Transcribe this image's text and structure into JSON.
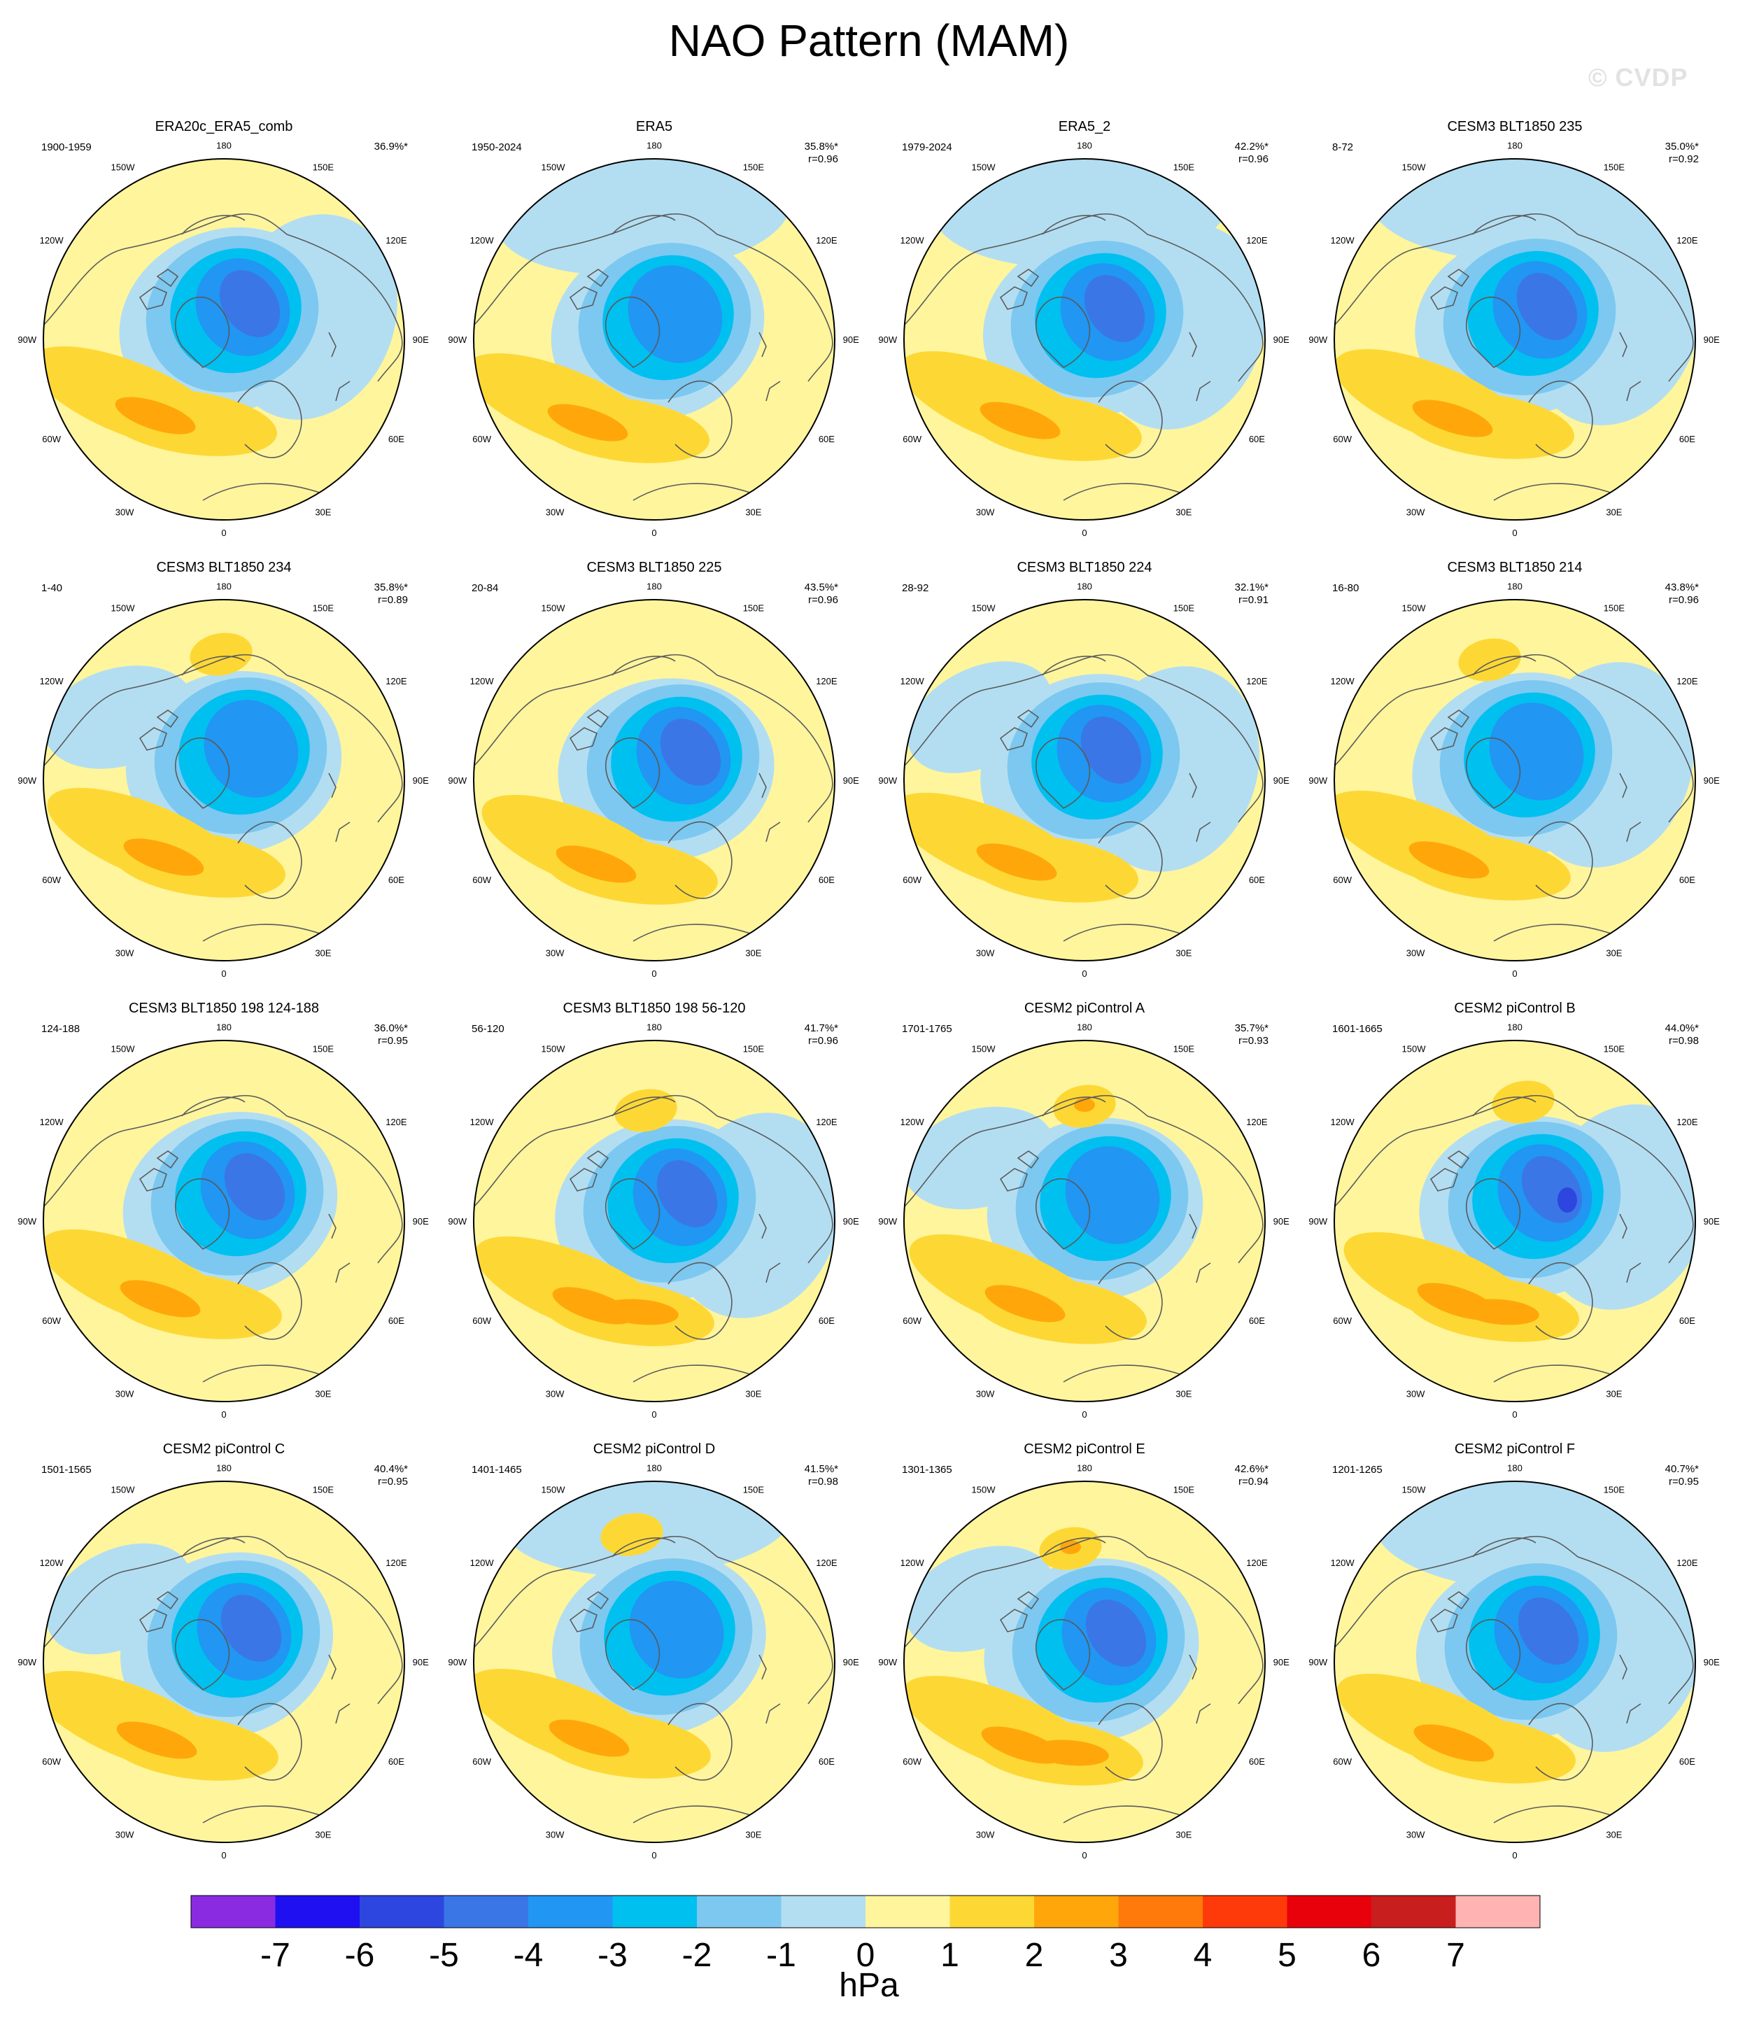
{
  "title": "NAO Pattern (MAM)",
  "watermark": "© CVDP",
  "colors": {
    "ocean_bg": "#FFF59D",
    "coast": "#5a5a5a",
    "border": "#000000"
  },
  "longitude_labels": [
    "180",
    "150E",
    "120E",
    "90E",
    "60E",
    "30E",
    "0",
    "30W",
    "60W",
    "90W",
    "120W",
    "150W"
  ],
  "panels": [
    {
      "title": "ERA20c_ERA5_comb",
      "period": "1900-1959",
      "pct": "36.9%*",
      "r": ""
    },
    {
      "title": "ERA5",
      "period": "1950-2024",
      "pct": "35.8%*",
      "r": "r=0.96"
    },
    {
      "title": "ERA5_2",
      "period": "1979-2024",
      "pct": "42.2%*",
      "r": "r=0.96"
    },
    {
      "title": "CESM3 BLT1850 235",
      "period": "8-72",
      "pct": "35.0%*",
      "r": "r=0.92"
    },
    {
      "title": "CESM3 BLT1850 234",
      "period": "1-40",
      "pct": "35.8%*",
      "r": "r=0.89"
    },
    {
      "title": "CESM3 BLT1850 225",
      "period": "20-84",
      "pct": "43.5%*",
      "r": "r=0.96"
    },
    {
      "title": "CESM3 BLT1850 224",
      "period": "28-92",
      "pct": "32.1%*",
      "r": "r=0.91"
    },
    {
      "title": "CESM3 BLT1850 214",
      "period": "16-80",
      "pct": "43.8%*",
      "r": "r=0.96"
    },
    {
      "title": "CESM3 BLT1850 198 124-188",
      "period": "124-188",
      "pct": "36.0%*",
      "r": "r=0.95"
    },
    {
      "title": "CESM3 BLT1850 198 56-120",
      "period": "56-120",
      "pct": "41.7%*",
      "r": "r=0.96"
    },
    {
      "title": "CESM2 piControl A",
      "period": "1701-1765",
      "pct": "35.7%*",
      "r": "r=0.93"
    },
    {
      "title": "CESM2 piControl B",
      "period": "1601-1665",
      "pct": "44.0%*",
      "r": "r=0.98"
    },
    {
      "title": "CESM2 piControl C",
      "period": "1501-1565",
      "pct": "40.4%*",
      "r": "r=0.95"
    },
    {
      "title": "CESM2 piControl D",
      "period": "1401-1465",
      "pct": "41.5%*",
      "r": "r=0.98"
    },
    {
      "title": "CESM2 piControl E",
      "period": "1301-1365",
      "pct": "42.6%*",
      "r": "r=0.94"
    },
    {
      "title": "CESM2 piControl F",
      "period": "1201-1265",
      "pct": "40.7%*",
      "r": "r=0.95"
    }
  ],
  "colorbar": {
    "unit": "hPa",
    "ticks": [
      "-7",
      "-6",
      "-5",
      "-4",
      "-3",
      "-2",
      "-1",
      "0",
      "1",
      "2",
      "3",
      "4",
      "5",
      "6",
      "7"
    ],
    "colors": [
      "#8A2BE2",
      "#1E10F0",
      "#2D46E0",
      "#3A76E6",
      "#2196F3",
      "#00C0F0",
      "#7CC8F0",
      "#B3DEF2",
      "#FFF59D",
      "#FDD835",
      "#FFA70A",
      "#FF7A0A",
      "#FF3A0A",
      "#E8000B",
      "#C81E1E",
      "#FFB3B3"
    ]
  }
}
